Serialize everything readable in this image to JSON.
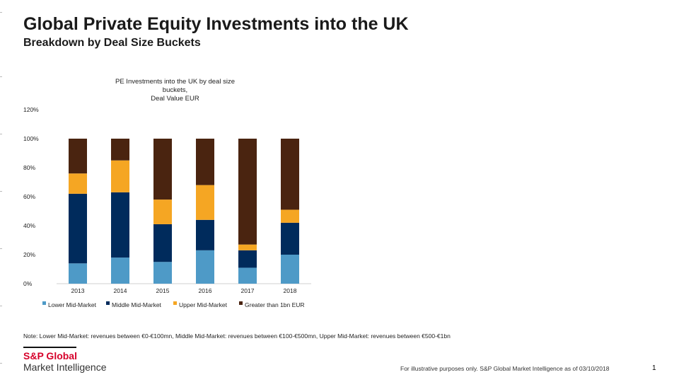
{
  "title": "Global Private Equity Investments into the UK",
  "subtitle": "Breakdown by Deal Size Buckets",
  "note": "Note: Lower Mid-Market: revenues between €0-€100mn, Middle Mid-Market: revenues between €100-€500mn, Upper Mid-Market: revenues between €500-€1bn",
  "logo": {
    "top": "S&P Global",
    "bottom": "Market Intelligence"
  },
  "footer": "For illustrative purposes only. S&P Global Market Intelligence as of 03/10/2018",
  "page_number": "1",
  "chart_data": {
    "type": "bar",
    "stacked": true,
    "title_lines": [
      "PE Investments into the UK by deal size",
      "buckets,",
      "Deal Value EUR"
    ],
    "categories": [
      "2013",
      "2014",
      "2015",
      "2016",
      "2017",
      "2018"
    ],
    "series": [
      {
        "name": "Lower Mid-Market",
        "color": "#4e9ac7",
        "values": [
          14,
          18,
          15,
          23,
          11,
          20
        ]
      },
      {
        "name": "Middle Mid-Market",
        "color": "#002b5c",
        "values": [
          48,
          45,
          26,
          21,
          12,
          22
        ]
      },
      {
        "name": "Upper Mid-Market",
        "color": "#f5a623",
        "values": [
          14,
          22,
          17,
          24,
          4,
          9
        ]
      },
      {
        "name": "Greater than 1bn EUR",
        "color": "#4a2410",
        "values": [
          24,
          15,
          42,
          32,
          73,
          49
        ]
      }
    ],
    "ylim": [
      0,
      120
    ],
    "yticks": [
      0,
      20,
      40,
      60,
      80,
      100,
      120
    ],
    "ytick_labels": [
      "0%",
      "20%",
      "40%",
      "60%",
      "80%",
      "100%",
      "120%"
    ],
    "grid": false,
    "legend_position": "bottom"
  }
}
